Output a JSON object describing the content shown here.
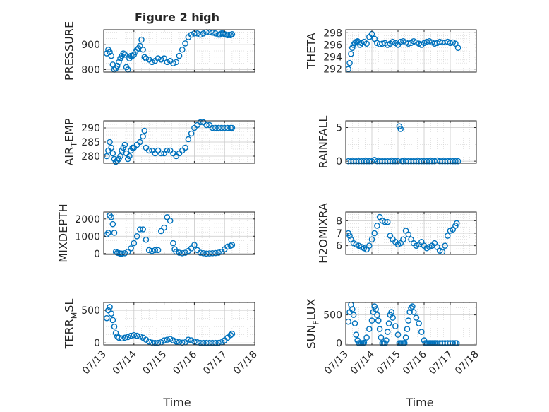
{
  "figure": {
    "title": "Figure 2 high",
    "marker_color": "#0072BD",
    "grid_color": "#c8c8c8",
    "xlabel": "Time"
  },
  "chart_data": [
    {
      "type": "scatter",
      "id": "pressure",
      "ylabel": "PRESSURE",
      "ylim": [
        790,
        960
      ],
      "yticks": [
        800,
        900
      ],
      "grid": true,
      "x_tick_labels": false,
      "x": [
        0.1,
        0.15,
        0.2,
        0.25,
        0.3,
        0.35,
        0.4,
        0.45,
        0.5,
        0.55,
        0.6,
        0.65,
        0.7,
        0.75,
        0.8,
        0.85,
        0.9,
        0.95,
        1.0,
        1.05,
        1.1,
        1.15,
        1.2,
        1.25,
        1.3,
        1.35,
        1.4,
        1.5,
        1.6,
        1.7,
        1.8,
        1.9,
        2.0,
        2.1,
        2.2,
        2.3,
        2.4,
        2.5,
        2.6,
        2.7,
        2.8,
        2.9,
        3.0,
        3.1,
        3.2,
        3.3,
        3.4,
        3.5,
        3.6,
        3.7,
        3.8,
        3.85,
        3.9,
        3.95,
        4.0,
        4.05,
        4.1,
        4.15,
        4.2,
        4.25
      ],
      "y": [
        865,
        880,
        870,
        855,
        820,
        800,
        805,
        815,
        830,
        845,
        855,
        865,
        860,
        810,
        800,
        845,
        855,
        855,
        860,
        870,
        880,
        885,
        895,
        920,
        880,
        850,
        845,
        840,
        830,
        835,
        845,
        840,
        845,
        830,
        835,
        825,
        830,
        855,
        880,
        905,
        930,
        940,
        945,
        945,
        940,
        945,
        950,
        950,
        948,
        945,
        940,
        940,
        945,
        945,
        942,
        940,
        938,
        940,
        938,
        942
      ]
    },
    {
      "type": "scatter",
      "id": "theta",
      "ylabel": "THETA",
      "ylim": [
        291.5,
        298.5
      ],
      "yticks": [
        292,
        294,
        296,
        298
      ],
      "grid": true,
      "x_tick_labels": false,
      "x": [
        0.1,
        0.15,
        0.2,
        0.25,
        0.3,
        0.35,
        0.4,
        0.45,
        0.5,
        0.55,
        0.6,
        0.7,
        0.8,
        0.9,
        1.0,
        1.1,
        1.2,
        1.3,
        1.4,
        1.5,
        1.6,
        1.7,
        1.8,
        1.9,
        2.0,
        2.1,
        2.2,
        2.3,
        2.4,
        2.5,
        2.6,
        2.7,
        2.8,
        2.9,
        3.0,
        3.1,
        3.2,
        3.3,
        3.4,
        3.5,
        3.6,
        3.7,
        3.8,
        3.9,
        4.0,
        4.1,
        4.2,
        4.3
      ],
      "y": [
        292,
        293,
        294.5,
        295.5,
        296,
        296.3,
        296.5,
        296.6,
        296.4,
        296,
        296.3,
        296.5,
        296.2,
        297.3,
        297.8,
        297.0,
        296.3,
        296.1,
        296.2,
        296.3,
        296.0,
        296.2,
        296.5,
        296.3,
        296.0,
        296.5,
        296.6,
        296.4,
        296.2,
        296.3,
        296.6,
        296.4,
        296.2,
        296.0,
        296.3,
        296.5,
        296.6,
        296.4,
        296.2,
        296.3,
        296.5,
        296.4,
        296.4,
        296.5,
        296.3,
        296.4,
        296.2,
        295.5
      ]
    },
    {
      "type": "scatter",
      "id": "air_temp",
      "ylabel": "AIR_TEMP",
      "ylabel_main": "AIR",
      "ylabel_sub": "T",
      "ylabel_rest": "EMP",
      "ylim": [
        277.5,
        292.5
      ],
      "yticks": [
        280,
        285,
        290
      ],
      "grid": true,
      "x_tick_labels": false,
      "x": [
        0.1,
        0.15,
        0.2,
        0.25,
        0.3,
        0.35,
        0.4,
        0.45,
        0.5,
        0.55,
        0.6,
        0.65,
        0.7,
        0.75,
        0.8,
        0.85,
        0.9,
        0.95,
        1.0,
        1.1,
        1.2,
        1.3,
        1.35,
        1.4,
        1.5,
        1.6,
        1.7,
        1.8,
        1.9,
        2.0,
        2.1,
        2.2,
        2.3,
        2.4,
        2.5,
        2.6,
        2.7,
        2.8,
        2.9,
        3.0,
        3.1,
        3.2,
        3.3,
        3.4,
        3.5,
        3.6,
        3.7,
        3.8,
        3.9,
        4.0,
        4.1,
        4.2,
        4.25
      ],
      "y": [
        280,
        282,
        285,
        283,
        281,
        279,
        278,
        278.5,
        279,
        280,
        282,
        283,
        284,
        281,
        279,
        280,
        282,
        283,
        283,
        284,
        285,
        287,
        289,
        283,
        282,
        282,
        281,
        282,
        281,
        281,
        282,
        282,
        281,
        280,
        281,
        282,
        283,
        286,
        288,
        290,
        291,
        292,
        292,
        291,
        291,
        290,
        290,
        290,
        290,
        290,
        290,
        290,
        290
      ]
    },
    {
      "type": "scatter",
      "id": "rainfall",
      "ylabel": "RAINFALL",
      "ylim": [
        -0.3,
        6
      ],
      "yticks": [
        0,
        5
      ],
      "grid": true,
      "x_tick_labels": false,
      "x": [
        0.1,
        0.2,
        0.3,
        0.4,
        0.5,
        0.6,
        0.7,
        0.8,
        0.9,
        1.0,
        1.1,
        1.2,
        1.3,
        1.4,
        1.5,
        1.6,
        1.7,
        1.8,
        1.9,
        2.0,
        2.05,
        2.1,
        2.15,
        2.2,
        2.3,
        2.4,
        2.5,
        2.6,
        2.7,
        2.8,
        2.9,
        3.0,
        3.1,
        3.2,
        3.3,
        3.4,
        3.5,
        3.6,
        3.7,
        3.8,
        3.9,
        4.0,
        4.1,
        4.2,
        4.3
      ],
      "y": [
        0,
        0,
        0,
        0,
        0,
        0,
        0,
        0,
        0,
        0,
        0.2,
        0,
        0,
        0,
        0,
        0,
        0,
        0,
        0,
        0,
        5.2,
        4.8,
        0,
        0,
        0,
        0,
        0,
        0,
        0,
        0,
        0,
        0,
        0,
        0,
        0,
        0,
        0.1,
        0,
        0,
        0,
        0,
        0,
        0,
        0,
        0
      ]
    },
    {
      "type": "scatter",
      "id": "mixdepth",
      "ylabel": "MIXDEPTH",
      "ylim": [
        -50,
        2400
      ],
      "yticks": [
        0,
        1000,
        2000
      ],
      "grid": true,
      "x_tick_labels": false,
      "x": [
        0.1,
        0.15,
        0.2,
        0.25,
        0.3,
        0.35,
        0.4,
        0.45,
        0.5,
        0.55,
        0.6,
        0.7,
        0.8,
        0.9,
        1.0,
        1.1,
        1.2,
        1.3,
        1.4,
        1.5,
        1.6,
        1.7,
        1.8,
        1.9,
        2.0,
        2.1,
        2.2,
        2.3,
        2.35,
        2.4,
        2.5,
        2.6,
        2.7,
        2.8,
        2.9,
        3.0,
        3.1,
        3.2,
        3.3,
        3.4,
        3.5,
        3.6,
        3.7,
        3.8,
        3.9,
        4.0,
        4.1,
        4.2,
        4.25
      ],
      "y": [
        1100,
        1200,
        2200,
        2100,
        1700,
        1200,
        100,
        50,
        30,
        0,
        0,
        20,
        100,
        300,
        600,
        1000,
        1400,
        1400,
        800,
        200,
        150,
        200,
        200,
        1300,
        1500,
        2100,
        1900,
        600,
        250,
        100,
        50,
        20,
        50,
        150,
        300,
        500,
        200,
        50,
        20,
        0,
        10,
        20,
        30,
        50,
        100,
        250,
        400,
        450,
        500
      ]
    },
    {
      "type": "scatter",
      "id": "h2omixra",
      "ylabel": "H2OMIXRA",
      "ylim": [
        5.3,
        8.7
      ],
      "yticks": [
        6,
        7,
        8
      ],
      "grid": true,
      "x_tick_labels": false,
      "x": [
        0.1,
        0.15,
        0.2,
        0.3,
        0.4,
        0.5,
        0.6,
        0.7,
        0.8,
        0.9,
        1.0,
        1.1,
        1.2,
        1.3,
        1.4,
        1.5,
        1.6,
        1.7,
        1.8,
        1.9,
        2.0,
        2.1,
        2.2,
        2.3,
        2.4,
        2.5,
        2.6,
        2.7,
        2.8,
        2.9,
        3.0,
        3.1,
        3.2,
        3.3,
        3.4,
        3.5,
        3.6,
        3.7,
        3.8,
        3.9,
        4.0,
        4.1,
        4.2,
        4.25
      ],
      "y": [
        7.0,
        6.8,
        6.5,
        6.2,
        6.1,
        6.0,
        5.9,
        5.8,
        5.7,
        6.0,
        6.5,
        7.0,
        7.6,
        8.3,
        8.0,
        7.9,
        7.9,
        6.8,
        6.5,
        6.3,
        6.1,
        6.2,
        6.5,
        7.2,
        6.9,
        6.5,
        6.2,
        6.0,
        6.1,
        6.3,
        6.0,
        5.8,
        5.9,
        6.0,
        6.2,
        5.9,
        5.6,
        5.5,
        6.0,
        6.8,
        7.2,
        7.3,
        7.6,
        7.8
      ]
    },
    {
      "type": "scatter",
      "id": "terr_msl",
      "ylabel": "TERR_MSL",
      "ylabel_main": "TERR",
      "ylabel_sub": "M",
      "ylabel_rest": "SL",
      "ylim": [
        -30,
        620
      ],
      "yticks": [
        0,
        500
      ],
      "grid": true,
      "x_tick_labels": true,
      "x": [
        0.1,
        0.15,
        0.2,
        0.25,
        0.3,
        0.35,
        0.4,
        0.45,
        0.5,
        0.6,
        0.7,
        0.8,
        0.9,
        1.0,
        1.1,
        1.2,
        1.3,
        1.4,
        1.5,
        1.6,
        1.7,
        1.8,
        1.9,
        2.0,
        2.1,
        2.2,
        2.3,
        2.4,
        2.5,
        2.6,
        2.7,
        2.8,
        2.9,
        3.0,
        3.1,
        3.2,
        3.3,
        3.4,
        3.5,
        3.6,
        3.7,
        3.8,
        3.9,
        4.0,
        4.1,
        4.2,
        4.25
      ],
      "y": [
        380,
        500,
        550,
        450,
        350,
        250,
        150,
        100,
        80,
        70,
        80,
        90,
        110,
        120,
        110,
        100,
        80,
        50,
        20,
        5,
        0,
        0,
        10,
        40,
        50,
        60,
        40,
        20,
        10,
        5,
        10,
        50,
        40,
        20,
        10,
        0,
        0,
        0,
        0,
        0,
        0,
        0,
        10,
        40,
        80,
        120,
        140
      ]
    },
    {
      "type": "scatter",
      "id": "sun_flux",
      "ylabel": "SUN_FLUX",
      "ylabel_main": "SUN",
      "ylabel_sub": "F",
      "ylabel_rest": "LUX",
      "ylim": [
        -30,
        720
      ],
      "yticks": [
        0,
        500
      ],
      "grid": true,
      "x_tick_labels": true,
      "x": [
        0.1,
        0.15,
        0.2,
        0.25,
        0.3,
        0.35,
        0.4,
        0.45,
        0.5,
        0.55,
        0.6,
        0.65,
        0.7,
        0.8,
        0.9,
        1.0,
        1.05,
        1.1,
        1.15,
        1.2,
        1.25,
        1.3,
        1.35,
        1.4,
        1.45,
        1.5,
        1.55,
        1.6,
        1.65,
        1.7,
        1.75,
        1.8,
        1.9,
        2.0,
        2.05,
        2.1,
        2.15,
        2.2,
        2.25,
        2.3,
        2.35,
        2.4,
        2.45,
        2.5,
        2.55,
        2.6,
        2.7,
        2.8,
        2.9,
        3.0,
        3.05,
        3.1,
        3.15,
        3.2,
        3.25,
        3.3,
        3.35,
        3.4,
        3.45,
        3.5,
        3.6,
        3.7,
        3.8,
        3.9,
        4.0,
        4.1,
        4.2,
        4.25
      ],
      "y": [
        380,
        550,
        680,
        600,
        500,
        350,
        150,
        50,
        0,
        0,
        0,
        0,
        10,
        100,
        250,
        400,
        550,
        650,
        600,
        500,
        400,
        250,
        100,
        0,
        0,
        0,
        50,
        200,
        350,
        500,
        550,
        450,
        300,
        150,
        0,
        0,
        0,
        0,
        0,
        100,
        250,
        400,
        550,
        620,
        650,
        550,
        450,
        350,
        200,
        50,
        0,
        0,
        0,
        0,
        0,
        0,
        0,
        0,
        0,
        0,
        0,
        0,
        0,
        0,
        0,
        0,
        0,
        0
      ]
    }
  ],
  "x_axis": {
    "tick_values": [
      0,
      1,
      2,
      3,
      4,
      5
    ],
    "tick_labels": [
      "07/13",
      "07/14",
      "07/15",
      "07/16",
      "07/17",
      "07/18"
    ]
  }
}
